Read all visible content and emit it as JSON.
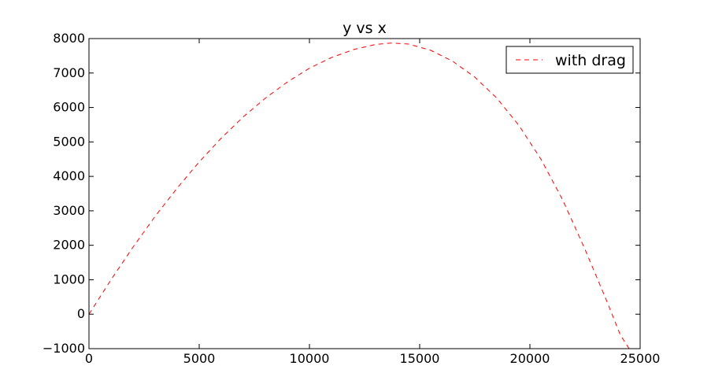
{
  "chart_data": {
    "type": "line",
    "title": "y vs x",
    "xlabel": "",
    "ylabel": "",
    "xlim": [
      0,
      25000
    ],
    "ylim": [
      -1000,
      8000
    ],
    "xticks": [
      0,
      5000,
      10000,
      15000,
      20000,
      25000
    ],
    "xtick_labels": [
      "0",
      "5000",
      "10000",
      "15000",
      "20000",
      "25000"
    ],
    "yticks": [
      -1000,
      0,
      1000,
      2000,
      3000,
      4000,
      5000,
      6000,
      7000,
      8000
    ],
    "ytick_labels": [
      "−1000",
      "0",
      "1000",
      "2000",
      "3000",
      "4000",
      "5000",
      "6000",
      "7000",
      "8000"
    ],
    "grid": false,
    "legend_position": "top-right",
    "series": [
      {
        "name": "with drag",
        "color": "#ff0000",
        "line_style": "dashed",
        "x": [
          0,
          1000,
          2000,
          3000,
          4000,
          5000,
          6000,
          7000,
          8000,
          9000,
          10000,
          11000,
          12000,
          13000,
          13700,
          14500,
          15500,
          16500,
          17500,
          18500,
          19500,
          20500,
          21500,
          22500,
          23500,
          24100,
          24500
        ],
        "y": [
          0,
          1000,
          1950,
          2840,
          3660,
          4420,
          5110,
          5730,
          6270,
          6740,
          7140,
          7450,
          7680,
          7830,
          7870,
          7840,
          7660,
          7340,
          6880,
          6270,
          5480,
          4500,
          3300,
          1880,
          360,
          -600,
          -1000
        ]
      }
    ]
  }
}
